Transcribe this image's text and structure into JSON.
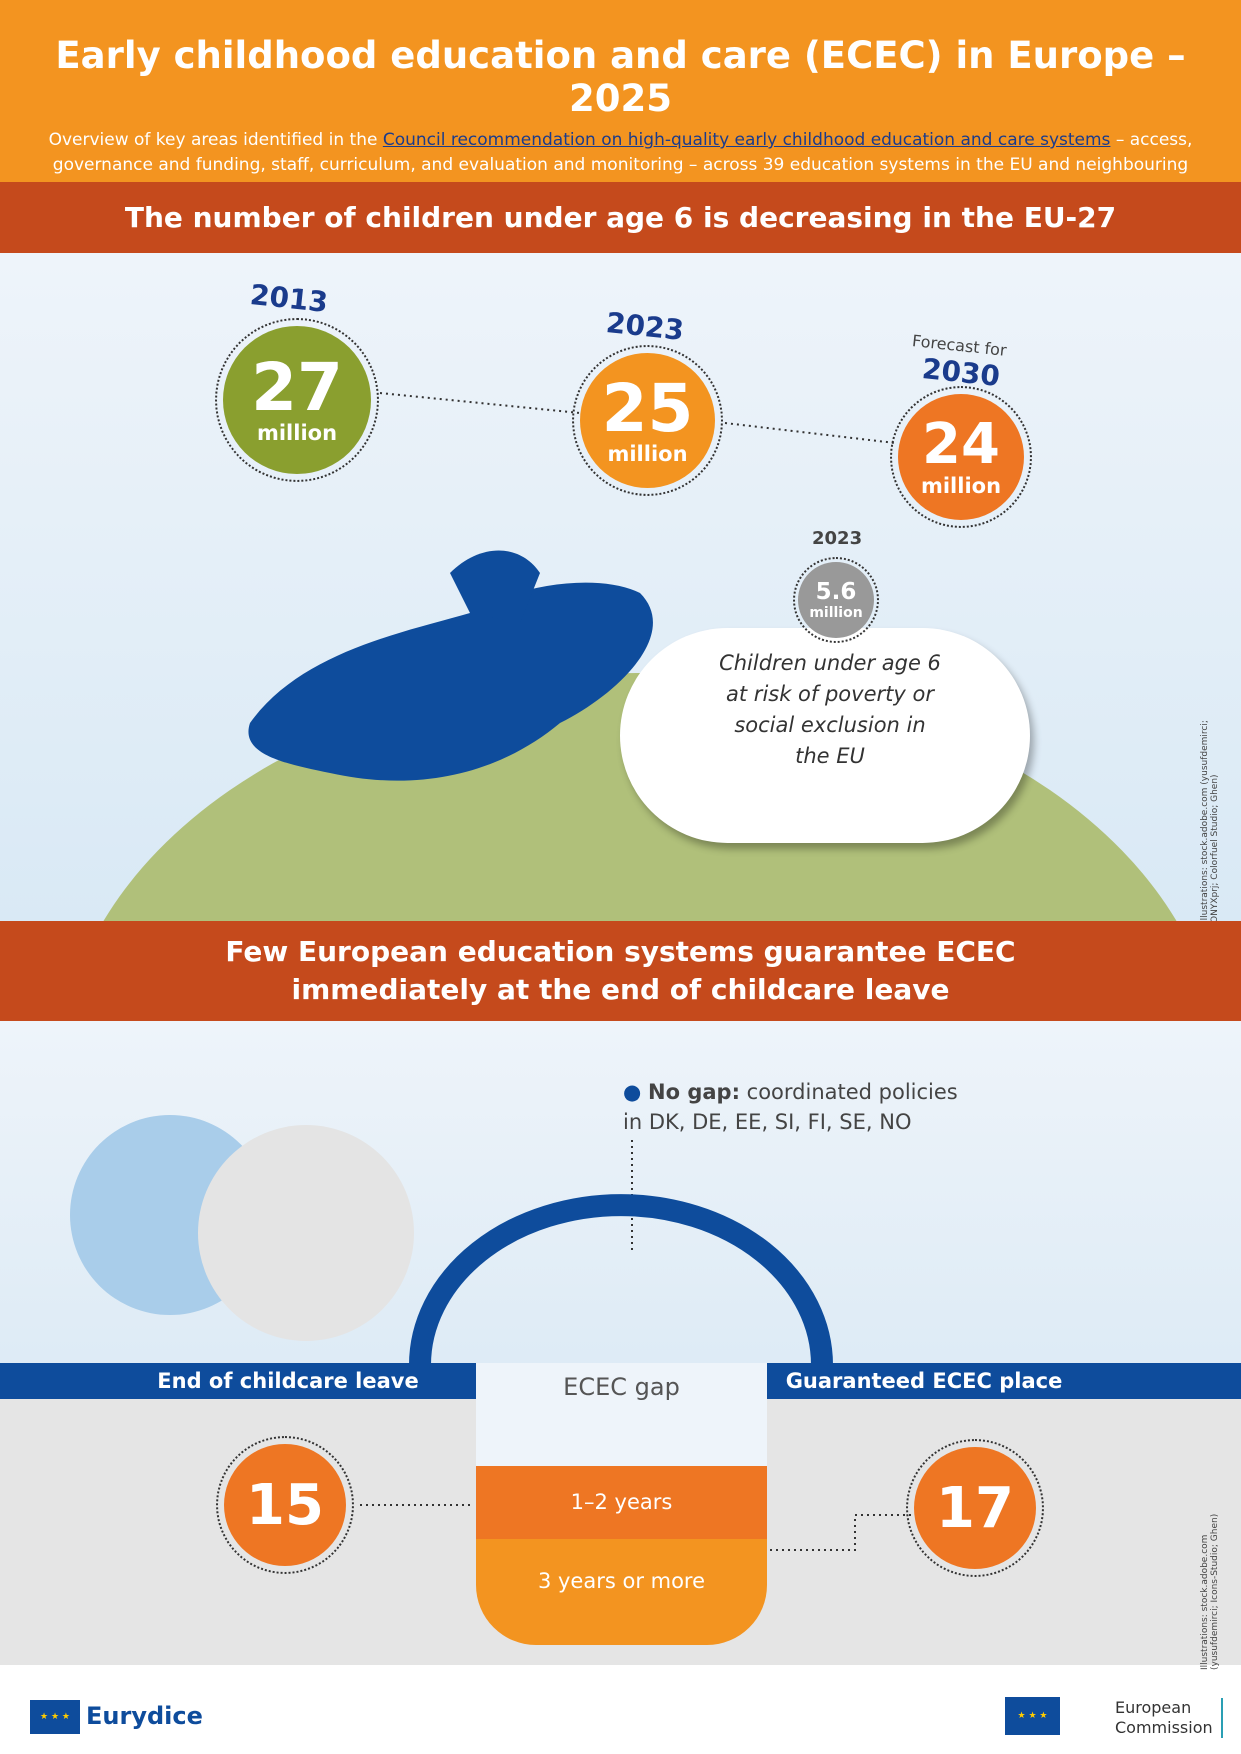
{
  "header": {
    "title": "Early childhood education and care (ECEC) in Europe – 2025",
    "subtitle_pre": "Overview of key areas identified in the ",
    "subtitle_link": "Council recommendation on high-quality early childhood education and care systems",
    "subtitle_post": " – access, governance and funding, staff, curriculum, and evaluation and monitoring – across 39 education systems in the EU and neighbouring countries"
  },
  "section1": {
    "title": "The number of children under age 6 is decreasing in the EU-27",
    "stats": [
      {
        "year": "2013",
        "value": "27",
        "unit": "million",
        "color": "#8a9f2f"
      },
      {
        "year": "2023",
        "value": "25",
        "unit": "million",
        "color": "#f39420"
      },
      {
        "year": "2030",
        "prefix": "Forecast for",
        "value": "24",
        "unit": "million",
        "color": "#ee7623"
      }
    ],
    "poverty": {
      "year": "2023",
      "value": "5.6",
      "unit": "million",
      "text": "Children under age 6 at risk of poverty or social exclusion in the EU"
    },
    "credit": "Illustrations: stock.adobe.com (yusufdemirci; ONYXprj; Colorfuel Studio; Ghen)"
  },
  "section2": {
    "title_line1": "Few European education systems guarantee ECEC",
    "title_line2": "immediately at the end of childcare leave",
    "no_gap_label": "No gap:",
    "no_gap_text": " coordinated policies in DK, DE, EE, SI, FI, SE, NO",
    "end_leave": "End of childcare leave",
    "gap": "ECEC gap",
    "guaranteed": "Guaranteed ECEC place",
    "gap_1_2": "1–2 years",
    "gap_3": "3 years or more",
    "count_left": "15",
    "count_right": "17",
    "credit": "Illustrations: stock.adobe.com (yusufdemirci; Icons-Studio; Ghen)"
  },
  "footer": {
    "eurydice": "Eurydice",
    "ec_line1": "European",
    "ec_line2": "Commission"
  },
  "colors": {
    "orange": "#f39420",
    "red": "#c54a1c",
    "blue": "#0e4c9c",
    "green": "#8a9f2f"
  }
}
